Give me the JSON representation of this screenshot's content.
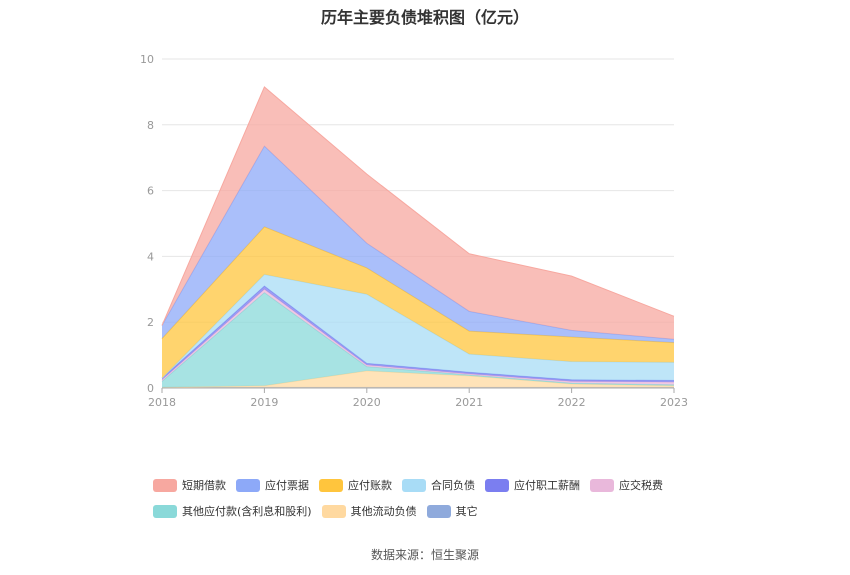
{
  "chart_data": {
    "type": "area",
    "stacked": true,
    "title": "历年主要负债堆积图（亿元）",
    "categories": [
      "2018",
      "2019",
      "2020",
      "2021",
      "2022",
      "2023"
    ],
    "ylim": [
      0,
      10
    ],
    "yticks": [
      0,
      2,
      4,
      6,
      8,
      10
    ],
    "grid": true,
    "legend_position": "bottom",
    "series": [
      {
        "name": "其它",
        "color": "#8faadc",
        "values": [
          0.02,
          0.02,
          0.02,
          0.02,
          0.02,
          0.02
        ]
      },
      {
        "name": "其他流动负债",
        "color": "#ffd9a0",
        "values": [
          0.0,
          0.05,
          0.5,
          0.35,
          0.1,
          0.05
        ]
      },
      {
        "name": "其他应付款(含利息和股利)",
        "color": "#8ad9d9",
        "values": [
          0.18,
          2.83,
          0.13,
          0.03,
          0.03,
          0.03
        ]
      },
      {
        "name": "应交税费",
        "color": "#e9b8db",
        "values": [
          0.05,
          0.1,
          0.05,
          0.03,
          0.05,
          0.08
        ]
      },
      {
        "name": "应付职工薪酬",
        "color": "#7b7ef0",
        "values": [
          0.05,
          0.1,
          0.05,
          0.05,
          0.05,
          0.05
        ]
      },
      {
        "name": "合同负债",
        "color": "#a8dcf6",
        "values": [
          0.0,
          0.35,
          2.1,
          0.55,
          0.55,
          0.55
        ]
      },
      {
        "name": "应付账款",
        "color": "#ffc53d",
        "values": [
          1.2,
          1.45,
          0.8,
          0.7,
          0.75,
          0.6
        ]
      },
      {
        "name": "应付票据",
        "color": "#8da9f8",
        "values": [
          0.4,
          2.45,
          0.75,
          0.6,
          0.2,
          0.1
        ]
      },
      {
        "name": "短期借款",
        "color": "#f7a8a0",
        "values": [
          0.0,
          1.8,
          2.1,
          1.75,
          1.65,
          0.7
        ]
      }
    ]
  },
  "legend_rows": [
    [
      {
        "name": "短期借款",
        "color": "#f7a8a0"
      },
      {
        "name": "应付票据",
        "color": "#8da9f8"
      },
      {
        "name": "应付账款",
        "color": "#ffc53d"
      },
      {
        "name": "合同负债",
        "color": "#a8dcf6"
      },
      {
        "name": "应付职工薪酬",
        "color": "#7b7ef0"
      },
      {
        "name": "应交税费",
        "color": "#e9b8db"
      }
    ],
    [
      {
        "name": "其他应付款(含利息和股利)",
        "color": "#8ad9d9"
      },
      {
        "name": "其他流动负债",
        "color": "#ffd9a0"
      },
      {
        "name": "其它",
        "color": "#8faadc"
      }
    ]
  ],
  "source": "数据来源：恒生聚源"
}
